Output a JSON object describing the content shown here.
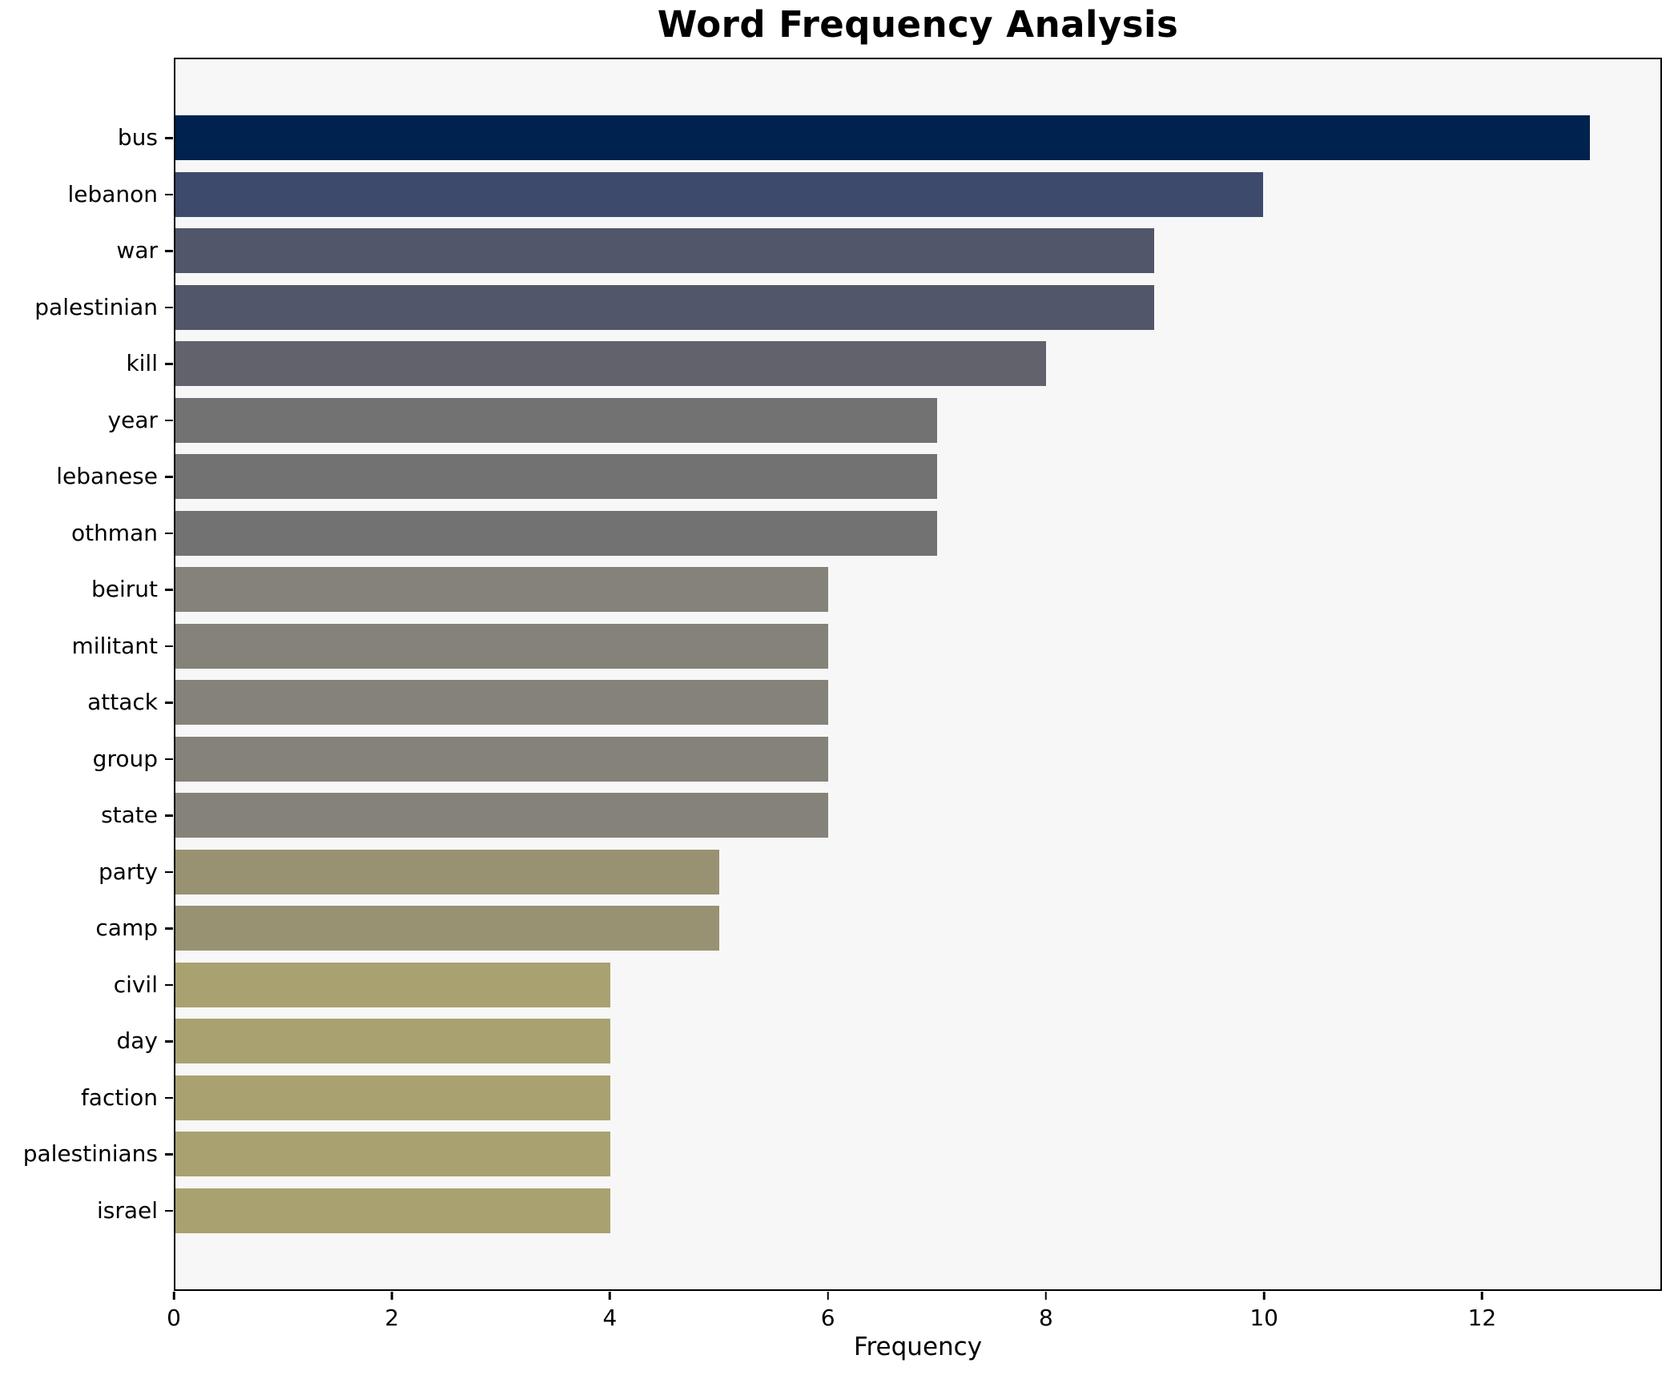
{
  "chart_data": {
    "type": "bar",
    "orientation": "horizontal",
    "title": "Word Frequency Analysis",
    "xlabel": "Frequency",
    "ylabel": "",
    "categories": [
      "bus",
      "lebanon",
      "war",
      "palestinian",
      "kill",
      "year",
      "lebanese",
      "othman",
      "beirut",
      "militant",
      "attack",
      "group",
      "state",
      "party",
      "camp",
      "civil",
      "day",
      "faction",
      "palestinians",
      "israel"
    ],
    "values": [
      13,
      10,
      9,
      9,
      8,
      7,
      7,
      7,
      6,
      6,
      6,
      6,
      6,
      5,
      5,
      4,
      4,
      4,
      4,
      4
    ],
    "bar_colors": [
      "#00224e",
      "#3e4a6b",
      "#51566a",
      "#51566a",
      "#62626c",
      "#727272",
      "#727272",
      "#727272",
      "#85827a",
      "#85827a",
      "#85827a",
      "#85827a",
      "#85827a",
      "#989272",
      "#989272",
      "#aaa171",
      "#aaa171",
      "#aaa171",
      "#aaa171",
      "#aaa171"
    ],
    "xlim": [
      0,
      13.65
    ],
    "xticks": [
      0,
      2,
      4,
      6,
      8,
      10,
      12
    ],
    "grid": false,
    "legend": "none",
    "plot_background": "#f7f7f7",
    "figure_background": "#ffffff",
    "spine_color": "#000000",
    "text_color": "#000000"
  }
}
